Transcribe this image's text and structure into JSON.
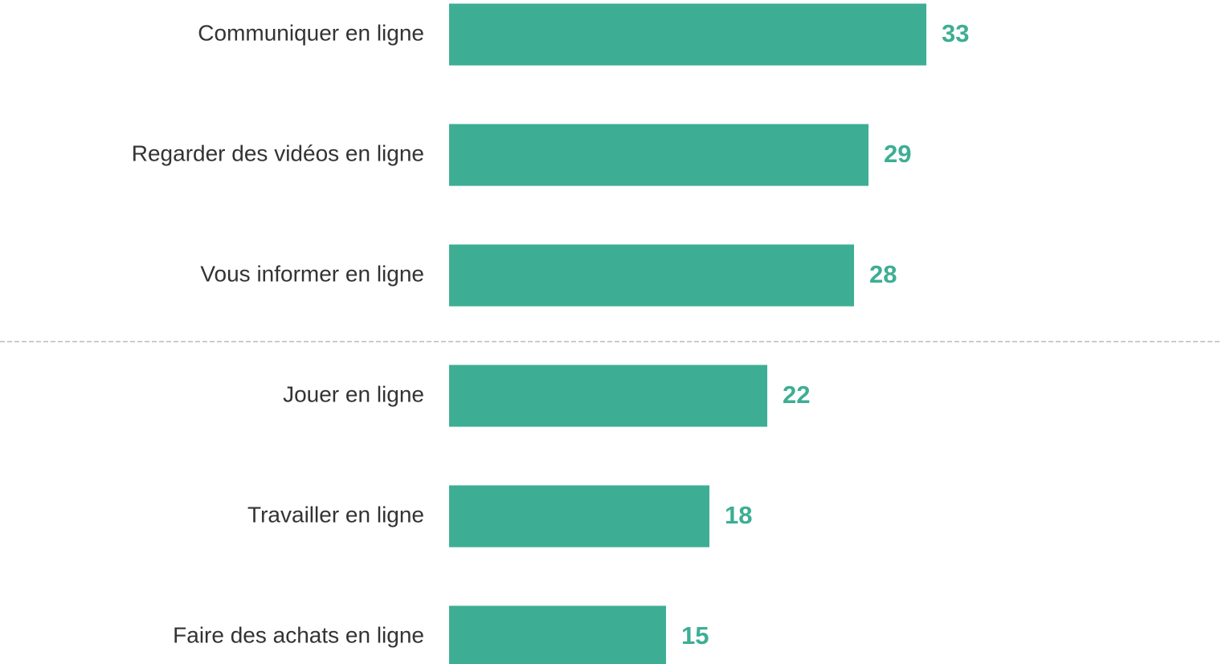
{
  "chart_data": {
    "type": "bar",
    "orientation": "horizontal",
    "categories": [
      "Communiquer en ligne",
      "Regarder des vidéos en ligne",
      "Vous informer en ligne",
      "Jouer en ligne",
      "Travailler en ligne",
      "Faire des achats en ligne"
    ],
    "values": [
      33,
      29,
      28,
      22,
      18,
      15
    ],
    "color": "#3dae94"
  }
}
